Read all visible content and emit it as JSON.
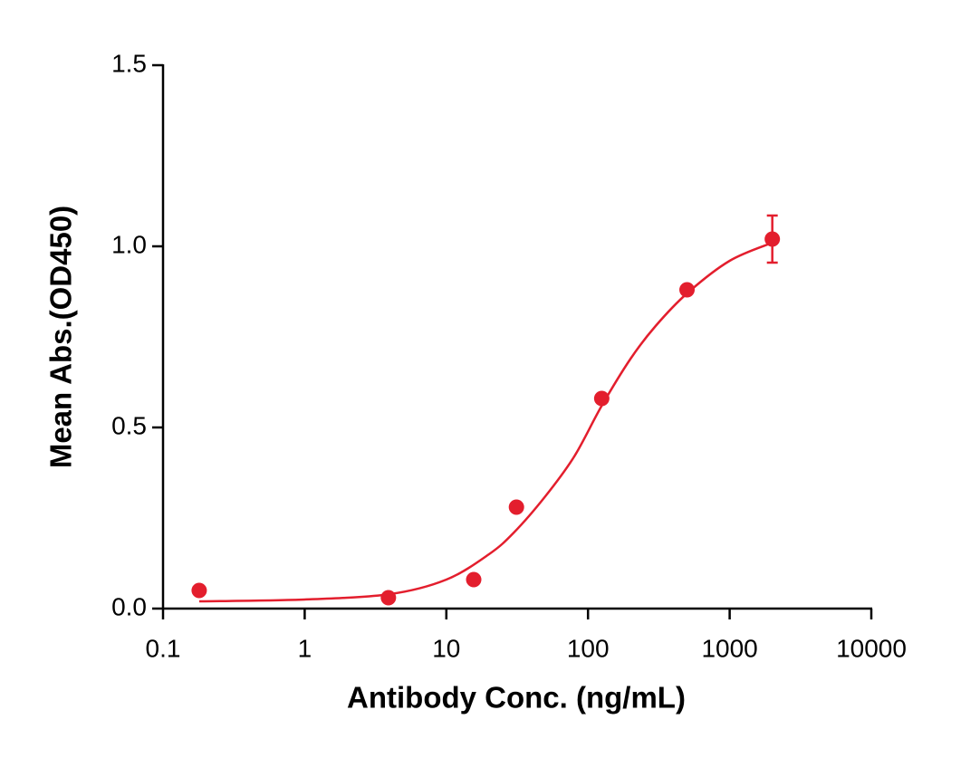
{
  "chart_data": {
    "type": "scatter",
    "x_label": "Antibody Conc. (ng/mL)",
    "y_label": "Mean Abs.(OD450)",
    "x_scale": "log",
    "xlim": [
      0.1,
      10000
    ],
    "xticks": [
      0.1,
      1,
      10,
      100,
      1000,
      10000
    ],
    "ylim": [
      0,
      1.5
    ],
    "yticks": [
      {
        "value": 0,
        "label": "0.0"
      },
      {
        "value": 0.5,
        "label": "0.5"
      },
      {
        "value": 1,
        "label": "1.0"
      },
      {
        "value": 1.5,
        "label": "1.5"
      }
    ],
    "color": "#e31e2d",
    "series": [
      {
        "x": [
          0.18,
          3.9,
          15.6,
          31.25,
          125,
          500,
          2000
        ],
        "values": [
          0.05,
          0.03,
          0.08,
          0.28,
          0.58,
          0.88,
          1.02
        ],
        "errors": [
          null,
          null,
          null,
          null,
          null,
          null,
          0.065
        ]
      }
    ],
    "fit": {
      "x": [
        0.18,
        1,
        4,
        10,
        20,
        30,
        50,
        80,
        125,
        200,
        300,
        500,
        1000,
        2000
      ],
      "values": [
        0.02,
        0.025,
        0.04,
        0.08,
        0.15,
        0.21,
        0.31,
        0.42,
        0.56,
        0.69,
        0.78,
        0.87,
        0.96,
        1.01
      ]
    }
  }
}
